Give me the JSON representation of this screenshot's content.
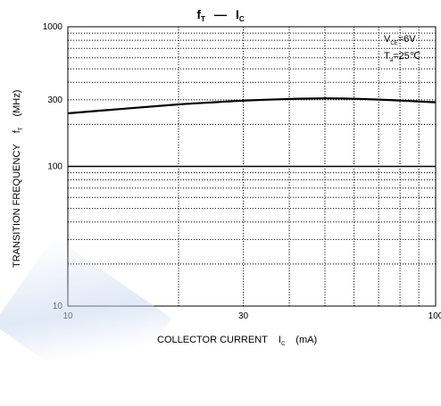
{
  "chart_data": {
    "type": "line",
    "title": {
      "main": "f",
      "main_sub": "T",
      "sep": "—",
      "second": "I",
      "second_sub": "C"
    },
    "xlabel": {
      "main": "COLLECTOR CURRENT",
      "var": "I",
      "var_sub": "C",
      "unit": "(mA)"
    },
    "ylabel": {
      "main": "TRANSITION FREQUENCY",
      "var": "f",
      "var_sub": "T",
      "unit": "(MHz)"
    },
    "x_scale": "log",
    "y_scale": "log",
    "xlim": [
      10,
      100
    ],
    "ylim": [
      10,
      1000
    ],
    "x_ticks": [
      10,
      30,
      100
    ],
    "x_tick_labels": [
      "10",
      "30",
      "100"
    ],
    "y_ticks": [
      10,
      100,
      300,
      1000
    ],
    "y_tick_labels": [
      "10",
      "100",
      "300",
      "1000"
    ],
    "grid": true,
    "conditions": [
      {
        "var": "V",
        "sub": "CE",
        "text": "=6V"
      },
      {
        "var": "T",
        "sub": "a",
        "text": "=25℃"
      }
    ],
    "series": [
      {
        "x": [
          10,
          15,
          20,
          25,
          30,
          40,
          50,
          60,
          70,
          85,
          100
        ],
        "y": [
          240,
          262,
          278,
          288,
          296,
          304,
          307,
          305,
          301,
          294,
          288
        ]
      }
    ]
  }
}
